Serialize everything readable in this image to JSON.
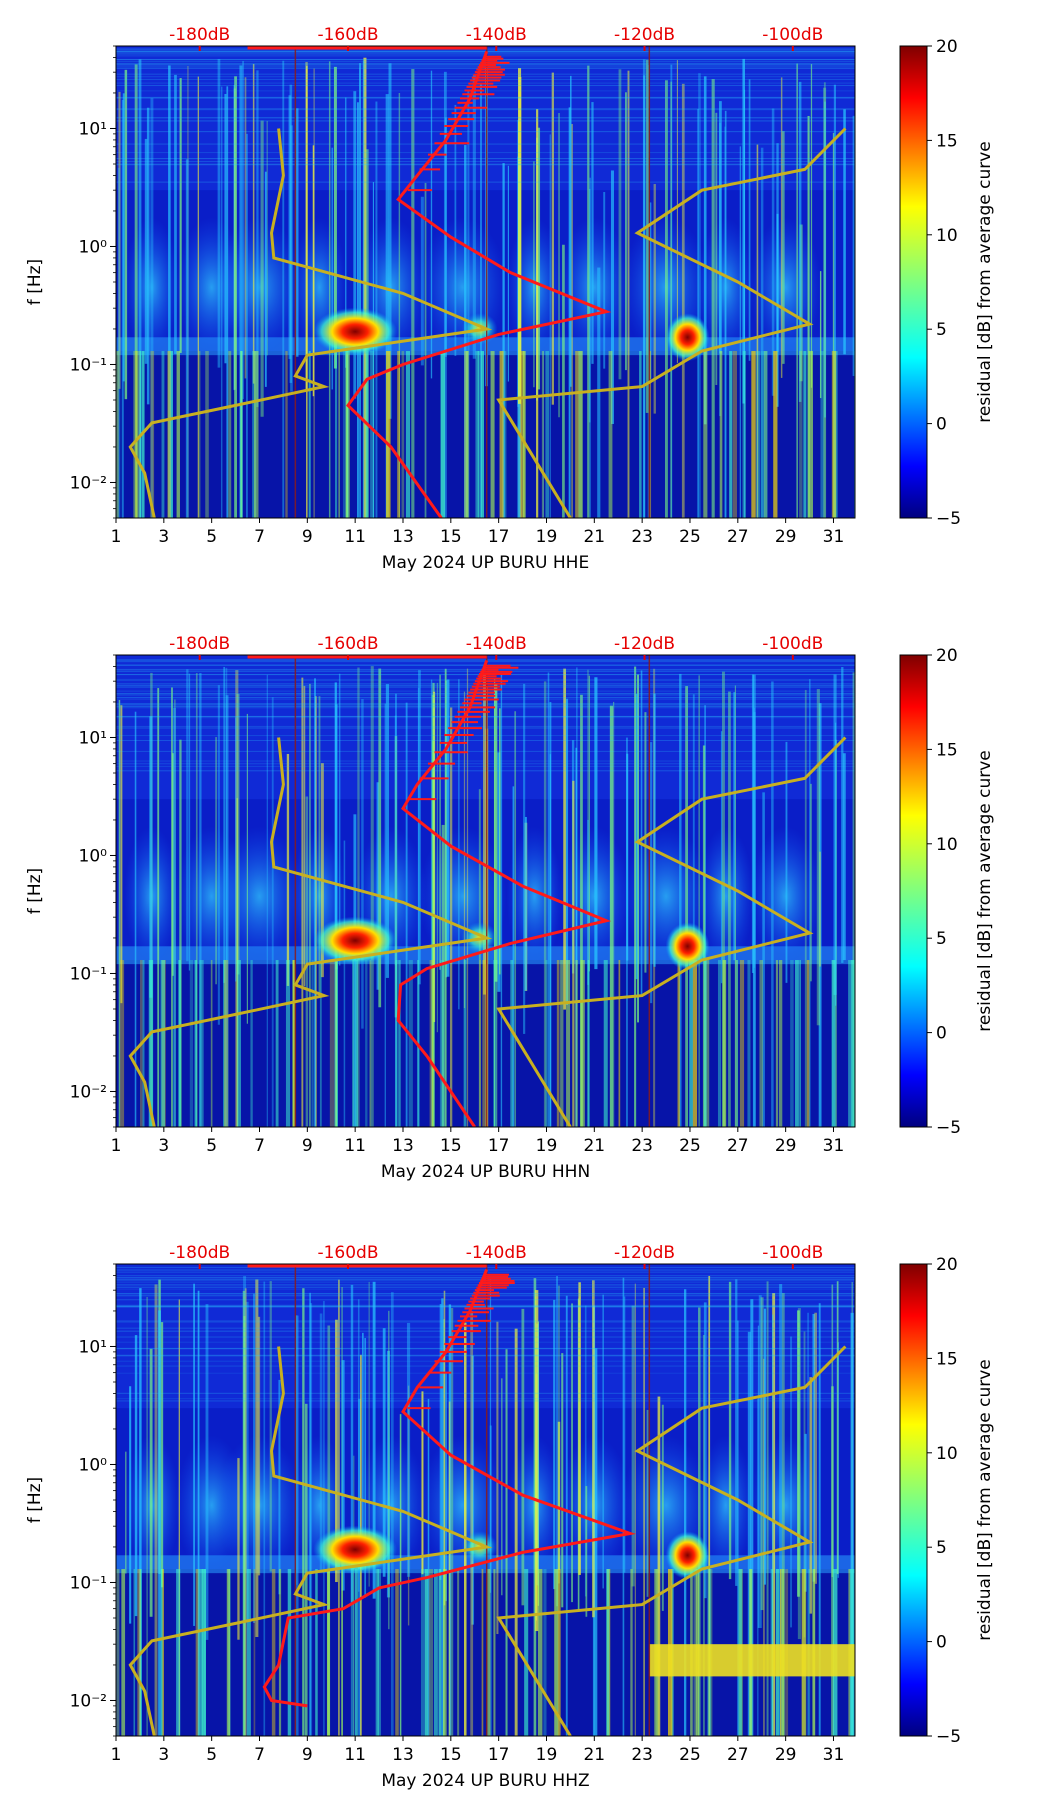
{
  "colors": {
    "db_label": "#e60000",
    "psd_curve": "#ff1a1a",
    "noise_model": "#c8b020",
    "day_line": "#8b1a1a"
  },
  "chart_data": [
    {
      "type": "heatmap",
      "channel": "HHE",
      "xlabel": "May 2024 UP BURU  HHE",
      "ylabel": "f [Hz]",
      "x_ticks": [
        1,
        3,
        5,
        7,
        9,
        11,
        13,
        15,
        17,
        19,
        21,
        23,
        25,
        27,
        29,
        31
      ],
      "xlim": [
        1,
        31.9
      ],
      "ylim": [
        0.005,
        50
      ],
      "y_scale": "log",
      "y_ticks": [
        {
          "value": 0.01,
          "label": "10⁻²"
        },
        {
          "value": 0.1,
          "label": "10⁻¹"
        },
        {
          "value": 1,
          "label": "10⁰"
        },
        {
          "value": 10,
          "label": "10¹"
        }
      ],
      "top_labels": [
        "-180dB",
        "-160dB",
        "-140dB",
        "-120dB",
        "-100dB"
      ],
      "top_label_days": [
        4.5,
        10.7,
        16.9,
        23.1,
        29.3
      ],
      "colorbar": {
        "label": "residual [dB] from average curve",
        "min": -5,
        "max": 20,
        "ticks": [
          -5,
          0,
          5,
          10,
          15,
          20
        ]
      },
      "vertical_lines_days": [
        8.5,
        16.5,
        23.3
      ],
      "hotspots": [
        {
          "day": 11.0,
          "freq": 0.19,
          "level": 20
        },
        {
          "day": 24.9,
          "freq": 0.17,
          "level": 20
        },
        {
          "day": 16.2,
          "freq": 0.2,
          "level": 10
        }
      ],
      "psd_curve": [
        {
          "day": 14.6,
          "freq": 0.005
        },
        {
          "day": 12.5,
          "freq": 0.02
        },
        {
          "day": 10.7,
          "freq": 0.045
        },
        {
          "day": 11.5,
          "freq": 0.075
        },
        {
          "day": 13.0,
          "freq": 0.1
        },
        {
          "day": 17.0,
          "freq": 0.18
        },
        {
          "day": 21.5,
          "freq": 0.28
        },
        {
          "day": 17.5,
          "freq": 0.6
        },
        {
          "day": 15.0,
          "freq": 1.2
        },
        {
          "day": 12.8,
          "freq": 2.5
        },
        {
          "day": 13.6,
          "freq": 4.0
        },
        {
          "day": 14.8,
          "freq": 8.0
        },
        {
          "day": 15.8,
          "freq": 18
        },
        {
          "day": 16.5,
          "freq": 45
        }
      ],
      "noise_model": [
        {
          "day": 2.6,
          "freq": 0.005
        },
        {
          "day": 2.2,
          "freq": 0.012
        },
        {
          "day": 1.6,
          "freq": 0.02
        },
        {
          "day": 2.5,
          "freq": 0.032
        },
        {
          "day": 6.0,
          "freq": 0.045
        },
        {
          "day": 9.7,
          "freq": 0.065
        },
        {
          "day": 8.5,
          "freq": 0.08
        },
        {
          "day": 9.0,
          "freq": 0.12
        },
        {
          "day": 16.5,
          "freq": 0.2
        },
        {
          "day": 13.0,
          "freq": 0.4
        },
        {
          "day": 7.6,
          "freq": 0.8
        },
        {
          "day": 7.5,
          "freq": 1.3
        },
        {
          "day": 8.0,
          "freq": 4.0
        },
        {
          "day": 7.8,
          "freq": 10
        }
      ],
      "noise_model_right": [
        {
          "day": 20.0,
          "freq": 0.005
        },
        {
          "day": 17.0,
          "freq": 0.05
        },
        {
          "day": 23.0,
          "freq": 0.065
        },
        {
          "day": 25.5,
          "freq": 0.13
        },
        {
          "day": 30.0,
          "freq": 0.22
        },
        {
          "day": 27.0,
          "freq": 0.5
        },
        {
          "day": 22.8,
          "freq": 1.3
        },
        {
          "day": 25.5,
          "freq": 3.0
        },
        {
          "day": 29.8,
          "freq": 4.5
        },
        {
          "day": 31.5,
          "freq": 10
        }
      ]
    },
    {
      "type": "heatmap",
      "channel": "HHN",
      "xlabel": "May 2024 UP BURU  HHN",
      "ylabel": "f [Hz]",
      "x_ticks": [
        1,
        3,
        5,
        7,
        9,
        11,
        13,
        15,
        17,
        19,
        21,
        23,
        25,
        27,
        29,
        31
      ],
      "xlim": [
        1,
        31.9
      ],
      "ylim": [
        0.005,
        50
      ],
      "y_scale": "log",
      "y_ticks": [
        {
          "value": 0.01,
          "label": "10⁻²"
        },
        {
          "value": 0.1,
          "label": "10⁻¹"
        },
        {
          "value": 1,
          "label": "10⁰"
        },
        {
          "value": 10,
          "label": "10¹"
        }
      ],
      "top_labels": [
        "-180dB",
        "-160dB",
        "-140dB",
        "-120dB",
        "-100dB"
      ],
      "top_label_days": [
        4.5,
        10.7,
        16.9,
        23.1,
        29.3
      ],
      "colorbar": {
        "label": "residual [dB] from average curve",
        "min": -5,
        "max": 20,
        "ticks": [
          -5,
          0,
          5,
          10,
          15,
          20
        ]
      },
      "vertical_lines_days": [
        8.5,
        16.5,
        23.3
      ],
      "hotspots": [
        {
          "day": 11.0,
          "freq": 0.19,
          "level": 20
        },
        {
          "day": 24.9,
          "freq": 0.17,
          "level": 20
        },
        {
          "day": 16.2,
          "freq": 0.2,
          "level": 10
        }
      ],
      "psd_curve": [
        {
          "day": 16.0,
          "freq": 0.005
        },
        {
          "day": 14.0,
          "freq": 0.02
        },
        {
          "day": 12.8,
          "freq": 0.04
        },
        {
          "day": 12.9,
          "freq": 0.08
        },
        {
          "day": 14.0,
          "freq": 0.11
        },
        {
          "day": 17.5,
          "freq": 0.18
        },
        {
          "day": 21.5,
          "freq": 0.28
        },
        {
          "day": 18.0,
          "freq": 0.55
        },
        {
          "day": 15.0,
          "freq": 1.2
        },
        {
          "day": 13.0,
          "freq": 2.5
        },
        {
          "day": 13.6,
          "freq": 4.0
        },
        {
          "day": 14.8,
          "freq": 8.0
        },
        {
          "day": 15.8,
          "freq": 18
        },
        {
          "day": 16.5,
          "freq": 45
        }
      ],
      "noise_model": [
        {
          "day": 2.6,
          "freq": 0.005
        },
        {
          "day": 2.2,
          "freq": 0.012
        },
        {
          "day": 1.6,
          "freq": 0.02
        },
        {
          "day": 2.5,
          "freq": 0.032
        },
        {
          "day": 6.0,
          "freq": 0.045
        },
        {
          "day": 9.7,
          "freq": 0.065
        },
        {
          "day": 8.5,
          "freq": 0.08
        },
        {
          "day": 9.0,
          "freq": 0.12
        },
        {
          "day": 16.5,
          "freq": 0.2
        },
        {
          "day": 13.0,
          "freq": 0.4
        },
        {
          "day": 7.6,
          "freq": 0.8
        },
        {
          "day": 7.5,
          "freq": 1.3
        },
        {
          "day": 8.0,
          "freq": 4.0
        },
        {
          "day": 7.8,
          "freq": 10
        }
      ],
      "noise_model_right": [
        {
          "day": 20.0,
          "freq": 0.005
        },
        {
          "day": 17.0,
          "freq": 0.05
        },
        {
          "day": 23.0,
          "freq": 0.065
        },
        {
          "day": 25.5,
          "freq": 0.13
        },
        {
          "day": 30.0,
          "freq": 0.22
        },
        {
          "day": 27.0,
          "freq": 0.5
        },
        {
          "day": 22.8,
          "freq": 1.3
        },
        {
          "day": 25.5,
          "freq": 3.0
        },
        {
          "day": 29.8,
          "freq": 4.5
        },
        {
          "day": 31.5,
          "freq": 10
        }
      ]
    },
    {
      "type": "heatmap",
      "channel": "HHZ",
      "xlabel": "May 2024 UP BURU  HHZ",
      "ylabel": "f [Hz]",
      "x_ticks": [
        1,
        3,
        5,
        7,
        9,
        11,
        13,
        15,
        17,
        19,
        21,
        23,
        25,
        27,
        29,
        31
      ],
      "xlim": [
        1,
        31.9
      ],
      "ylim": [
        0.005,
        50
      ],
      "y_scale": "log",
      "y_ticks": [
        {
          "value": 0.01,
          "label": "10⁻²"
        },
        {
          "value": 0.1,
          "label": "10⁻¹"
        },
        {
          "value": 1,
          "label": "10⁰"
        },
        {
          "value": 10,
          "label": "10¹"
        }
      ],
      "top_labels": [
        "-180dB",
        "-160dB",
        "-140dB",
        "-120dB",
        "-100dB"
      ],
      "top_label_days": [
        4.5,
        10.7,
        16.9,
        23.1,
        29.3
      ],
      "colorbar": {
        "label": "residual [dB] from average curve",
        "min": -5,
        "max": 20,
        "ticks": [
          -5,
          0,
          5,
          10,
          15,
          20
        ]
      },
      "vertical_lines_days": [
        8.5,
        16.5,
        23.3
      ],
      "hotspots": [
        {
          "day": 11.0,
          "freq": 0.19,
          "level": 20
        },
        {
          "day": 24.9,
          "freq": 0.17,
          "level": 20
        },
        {
          "day": 16.2,
          "freq": 0.2,
          "level": 10
        }
      ],
      "band": {
        "day_start": 23.3,
        "day_end": 31.9,
        "freq_low": 0.016,
        "freq_high": 0.03,
        "level": 12
      },
      "psd_curve": [
        {
          "day": 9.0,
          "freq": 0.009
        },
        {
          "day": 7.5,
          "freq": 0.01
        },
        {
          "day": 7.2,
          "freq": 0.013
        },
        {
          "day": 7.8,
          "freq": 0.02
        },
        {
          "day": 8.2,
          "freq": 0.05
        },
        {
          "day": 10.5,
          "freq": 0.06
        },
        {
          "day": 12.0,
          "freq": 0.09
        },
        {
          "day": 14.0,
          "freq": 0.11
        },
        {
          "day": 18.0,
          "freq": 0.18
        },
        {
          "day": 22.5,
          "freq": 0.26
        },
        {
          "day": 18.0,
          "freq": 0.55
        },
        {
          "day": 15.0,
          "freq": 1.2
        },
        {
          "day": 13.0,
          "freq": 2.8
        },
        {
          "day": 13.6,
          "freq": 4.5
        },
        {
          "day": 14.8,
          "freq": 9.0
        },
        {
          "day": 15.8,
          "freq": 20
        },
        {
          "day": 16.5,
          "freq": 45
        }
      ],
      "noise_model": [
        {
          "day": 2.6,
          "freq": 0.005
        },
        {
          "day": 2.2,
          "freq": 0.012
        },
        {
          "day": 1.6,
          "freq": 0.02
        },
        {
          "day": 2.5,
          "freq": 0.032
        },
        {
          "day": 6.0,
          "freq": 0.045
        },
        {
          "day": 9.7,
          "freq": 0.065
        },
        {
          "day": 8.5,
          "freq": 0.08
        },
        {
          "day": 9.0,
          "freq": 0.12
        },
        {
          "day": 16.5,
          "freq": 0.2
        },
        {
          "day": 13.0,
          "freq": 0.4
        },
        {
          "day": 7.6,
          "freq": 0.8
        },
        {
          "day": 7.5,
          "freq": 1.3
        },
        {
          "day": 8.0,
          "freq": 4.0
        },
        {
          "day": 7.8,
          "freq": 10
        }
      ],
      "noise_model_right": [
        {
          "day": 20.0,
          "freq": 0.005
        },
        {
          "day": 17.0,
          "freq": 0.05
        },
        {
          "day": 23.0,
          "freq": 0.065
        },
        {
          "day": 25.5,
          "freq": 0.13
        },
        {
          "day": 30.0,
          "freq": 0.22
        },
        {
          "day": 27.0,
          "freq": 0.5
        },
        {
          "day": 22.8,
          "freq": 1.3
        },
        {
          "day": 25.5,
          "freq": 3.0
        },
        {
          "day": 29.8,
          "freq": 4.5
        },
        {
          "day": 31.5,
          "freq": 10
        }
      ]
    }
  ]
}
